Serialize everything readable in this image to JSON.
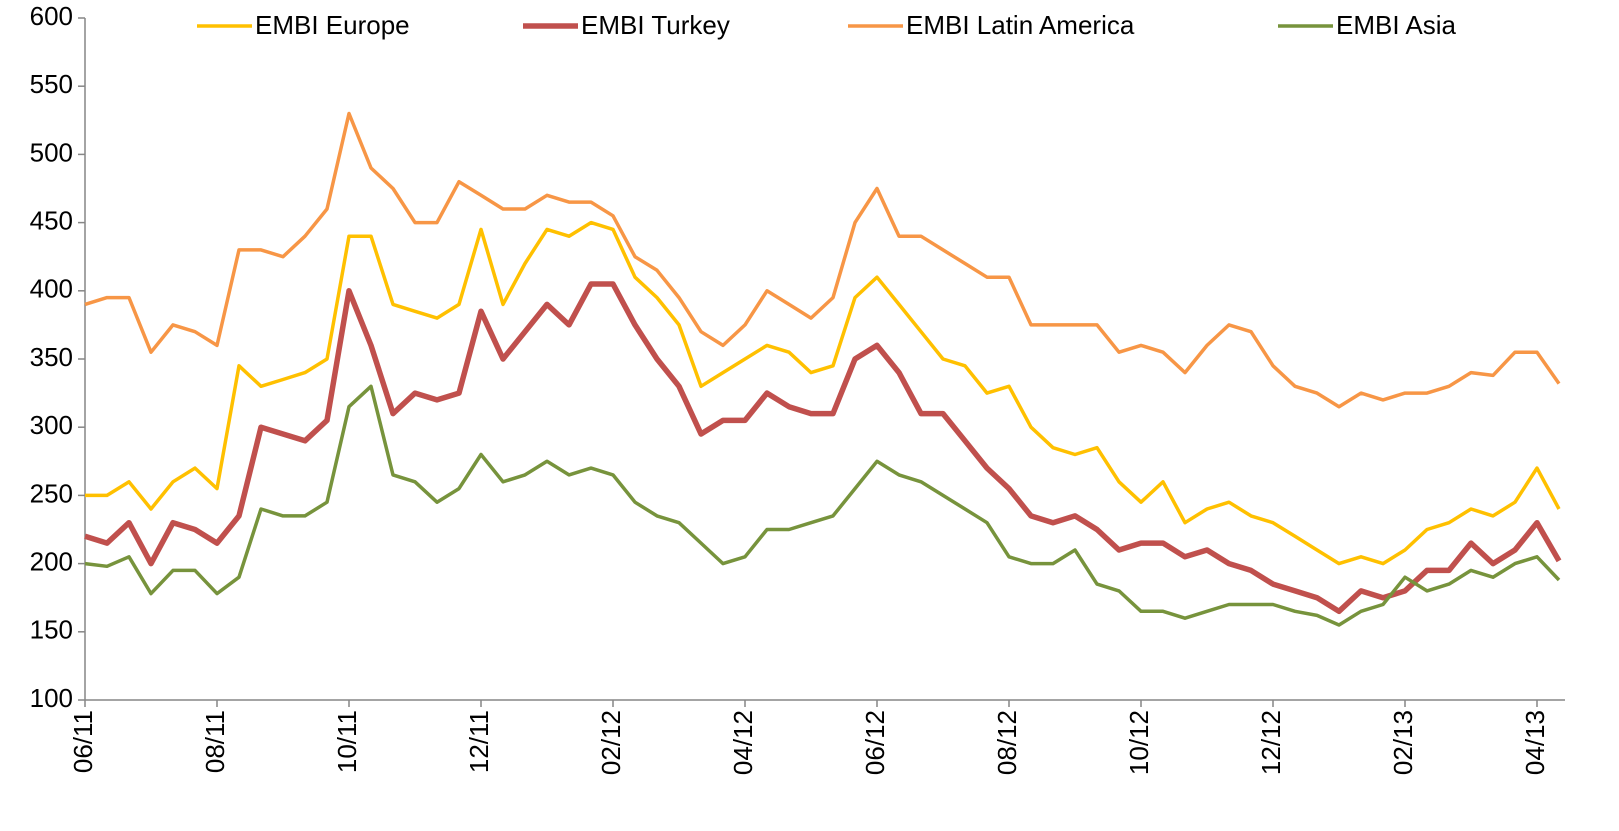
{
  "chart_data": {
    "type": "line",
    "categories": [
      "06/11",
      null,
      null,
      null,
      null,
      null,
      "08/11",
      null,
      null,
      null,
      null,
      null,
      "10/11",
      null,
      null,
      null,
      null,
      null,
      "12/11",
      null,
      null,
      null,
      null,
      null,
      "02/12",
      null,
      null,
      null,
      null,
      null,
      "04/12",
      null,
      null,
      null,
      null,
      null,
      "06/12",
      null,
      null,
      null,
      null,
      null,
      "08/12",
      null,
      null,
      null,
      null,
      null,
      "10/12",
      null,
      null,
      null,
      null,
      null,
      "12/12",
      null,
      null,
      null,
      null,
      null,
      "02/13",
      null,
      null,
      null,
      null,
      null,
      "04/13",
      null
    ],
    "series": [
      {
        "name": "EMBI Europe",
        "color": "#ffc000",
        "values": [
          250,
          250,
          260,
          240,
          260,
          270,
          255,
          345,
          330,
          335,
          340,
          350,
          440,
          440,
          390,
          385,
          380,
          390,
          445,
          390,
          420,
          445,
          440,
          450,
          445,
          410,
          395,
          375,
          330,
          340,
          350,
          360,
          355,
          340,
          345,
          395,
          410,
          390,
          370,
          350,
          345,
          325,
          330,
          300,
          285,
          280,
          285,
          260,
          245,
          260,
          230,
          240,
          245,
          235,
          230,
          220,
          210,
          200,
          205,
          200,
          210,
          225,
          230,
          240,
          235,
          245,
          270,
          240
        ]
      },
      {
        "name": "EMBI Turkey",
        "color": "#c0504d",
        "values": [
          220,
          215,
          230,
          200,
          230,
          225,
          215,
          235,
          300,
          295,
          290,
          305,
          400,
          360,
          310,
          325,
          320,
          325,
          385,
          350,
          370,
          390,
          375,
          405,
          405,
          375,
          350,
          330,
          295,
          305,
          305,
          325,
          315,
          310,
          310,
          350,
          360,
          340,
          310,
          310,
          290,
          270,
          255,
          235,
          230,
          235,
          225,
          210,
          215,
          215,
          205,
          210,
          200,
          195,
          185,
          180,
          175,
          165,
          180,
          175,
          180,
          195,
          195,
          215,
          200,
          210,
          230,
          202
        ]
      },
      {
        "name": "EMBI Latin America",
        "color": "#f79646",
        "values": [
          390,
          395,
          395,
          355,
          375,
          370,
          360,
          430,
          430,
          425,
          440,
          460,
          530,
          490,
          475,
          450,
          450,
          480,
          470,
          460,
          460,
          470,
          465,
          465,
          455,
          425,
          415,
          395,
          370,
          360,
          375,
          400,
          390,
          380,
          395,
          450,
          475,
          440,
          440,
          430,
          420,
          410,
          410,
          375,
          375,
          375,
          375,
          355,
          360,
          355,
          340,
          360,
          375,
          370,
          345,
          330,
          325,
          315,
          325,
          320,
          325,
          325,
          330,
          340,
          338,
          355,
          355,
          332
        ]
      },
      {
        "name": "EMBI Asia",
        "color": "#77933c",
        "values": [
          200,
          198,
          205,
          178,
          195,
          195,
          178,
          190,
          240,
          235,
          235,
          245,
          315,
          330,
          265,
          260,
          245,
          255,
          280,
          260,
          265,
          275,
          265,
          270,
          265,
          245,
          235,
          230,
          215,
          200,
          205,
          225,
          225,
          230,
          235,
          255,
          275,
          265,
          260,
          250,
          240,
          230,
          205,
          200,
          200,
          210,
          185,
          180,
          165,
          165,
          160,
          165,
          170,
          170,
          170,
          165,
          162,
          155,
          165,
          170,
          190,
          180,
          185,
          195,
          190,
          200,
          205,
          188
        ]
      }
    ],
    "ylim": [
      100,
      600
    ],
    "yticks": [
      100,
      150,
      200,
      250,
      300,
      350,
      400,
      450,
      500,
      550,
      600
    ],
    "grid": false,
    "legend": "top"
  }
}
